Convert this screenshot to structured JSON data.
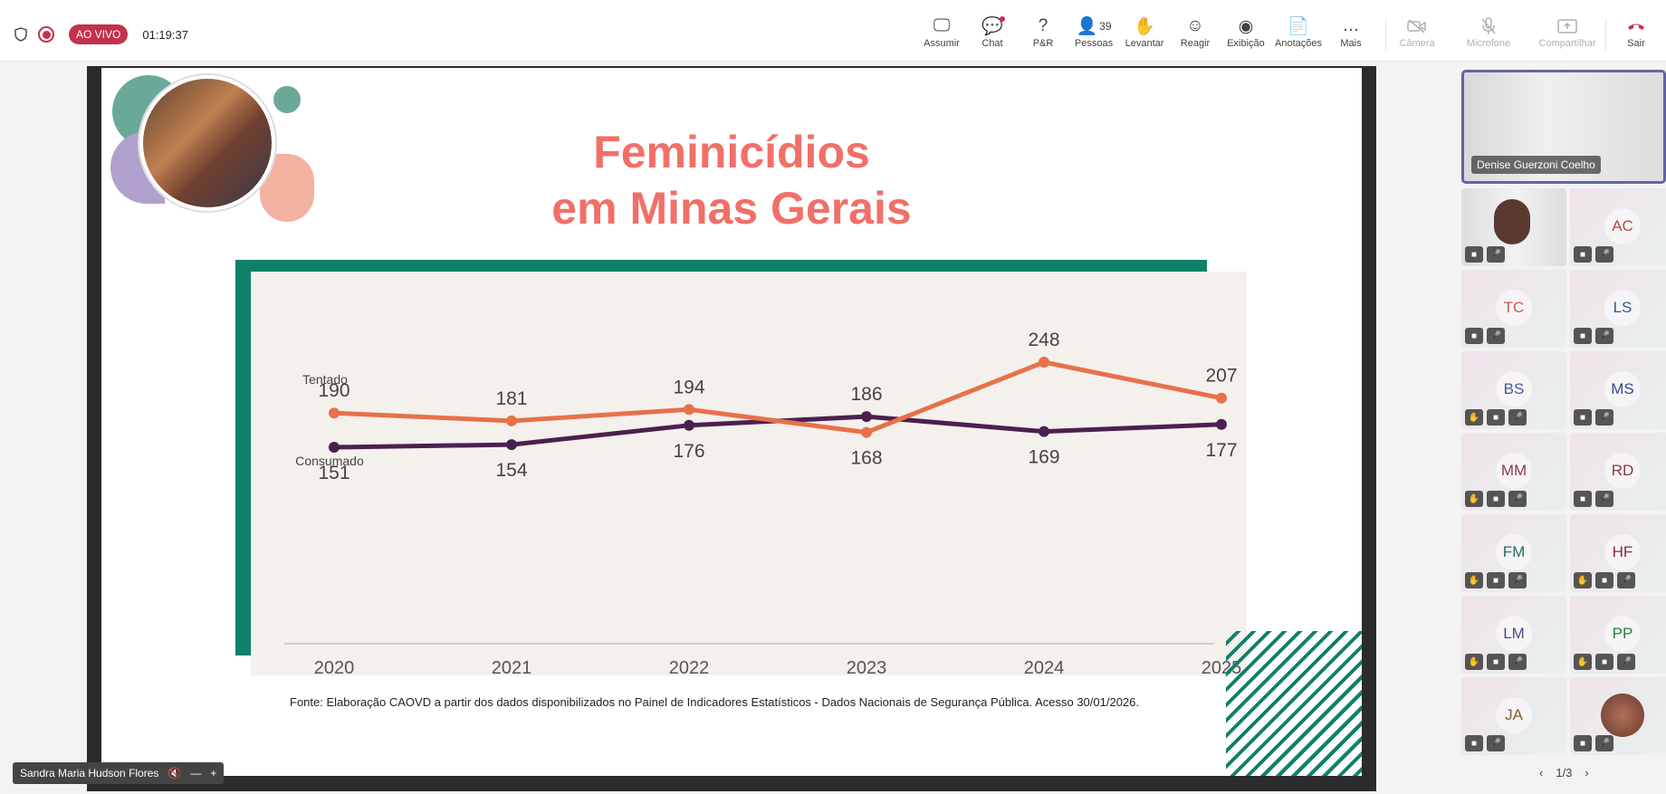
{
  "toolbar": {
    "live_label": "AO VIVO",
    "timer": "01:19:37",
    "items": [
      {
        "label": "Assumir",
        "icon": "share-screen-icon"
      },
      {
        "label": "Chat",
        "icon": "chat-icon"
      },
      {
        "label": "P&R",
        "icon": "qa-icon"
      },
      {
        "label": "Pessoas",
        "icon": "people-icon",
        "count": "39"
      },
      {
        "label": "Levantar",
        "icon": "raise-hand-icon"
      },
      {
        "label": "Reagir",
        "icon": "react-icon"
      },
      {
        "label": "Exibição",
        "icon": "view-icon"
      },
      {
        "label": "Anotações",
        "icon": "notes-icon"
      },
      {
        "label": "Mais",
        "icon": "more-icon"
      }
    ],
    "camera_label": "Câmera",
    "mic_label": "Microfone",
    "share_label": "Compartilhar",
    "leave_label": "Sair"
  },
  "slide": {
    "title_line1": "Feminicídios",
    "title_line2": "em Minas Gerais",
    "source": "Fonte: Elaboração CAOVD a partir dos dados disponibilizados no Painel de Indicadores Estatísticos - Dados Nacionais de Segurança Pública. Acesso 30/01/2026."
  },
  "chart_data": {
    "type": "line",
    "categories": [
      "2020",
      "2021",
      "2022",
      "2023",
      "2024",
      "2025"
    ],
    "series": [
      {
        "name": "Feminicídios consumados",
        "values": [
          151,
          154,
          176,
          186,
          169,
          177
        ],
        "color": "#4a2050"
      },
      {
        "name": "Feminicídios tentados",
        "values": [
          190,
          181,
          194,
          168,
          248,
          207
        ],
        "color": "#e8704a"
      }
    ],
    "annotations": {
      "tentado": "Tentado",
      "consumado": "Consumado"
    },
    "legend": "bottom",
    "grid": false
  },
  "participants": {
    "main": {
      "name": "Denise Guerzoni Coelho"
    },
    "tiles": [
      "",
      "AC",
      "TC",
      "LS",
      "BS",
      "MS",
      "MM",
      "RD",
      "FM",
      "HF",
      "LM",
      "PP",
      "JA",
      ""
    ],
    "tile_colors": [
      "#ccc",
      "#b44",
      "#c55",
      "#335a8a",
      "#445a8a",
      "#3a4a8a",
      "#8a3a4a",
      "#8a3a3a",
      "#2a6a6a",
      "#8a2a3a",
      "#4a4a8a",
      "#2a7a4a",
      "#8a5a2a",
      "#a66"
    ],
    "pager": "1/3",
    "self_name": "Sandra Maria Hudson Flores"
  }
}
